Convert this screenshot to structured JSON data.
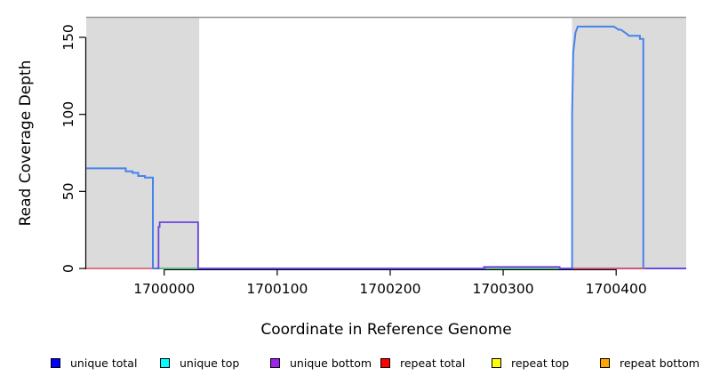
{
  "chart_data": {
    "type": "line",
    "title": "",
    "xlabel": "Coordinate in Reference Genome",
    "ylabel": "Read Coverage Depth",
    "xlim": [
      1699931,
      1700462
    ],
    "ylim": [
      0,
      163
    ],
    "xticks": [
      1700000,
      1700100,
      1700200,
      1700300,
      1700400
    ],
    "yticks": [
      0,
      50,
      100,
      150
    ],
    "grid": false,
    "shade_color": "#DBDBDB",
    "frame_color": "#969696",
    "shaded_regions": [
      {
        "name": "repeat-region-left",
        "from": 1699931,
        "to": 1700031
      },
      {
        "name": "repeat-region-right",
        "from": 1700361,
        "to": 1700462
      }
    ],
    "series": [
      {
        "name": "unique total",
        "color": "#4583EC",
        "width": 2,
        "segments": [
          [
            [
              1699931,
              65
            ],
            [
              1699966,
              65
            ],
            [
              1699966,
              63
            ],
            [
              1699972,
              63
            ],
            [
              1699972,
              62
            ],
            [
              1699977,
              62
            ],
            [
              1699977,
              60
            ],
            [
              1699983,
              60
            ],
            [
              1699983,
              59
            ],
            [
              1699990,
              59
            ],
            [
              1699990,
              0
            ],
            [
              1700361,
              0
            ],
            [
              1700361,
              100
            ],
            [
              1700362,
              140
            ],
            [
              1700364,
              153
            ],
            [
              1700366,
              157
            ],
            [
              1700398,
              157
            ],
            [
              1700400,
              156
            ],
            [
              1700402,
              155
            ],
            [
              1700404,
              155
            ],
            [
              1700406,
              154
            ],
            [
              1700408,
              153
            ],
            [
              1700410,
              152
            ],
            [
              1700411,
              151
            ],
            [
              1700421,
              151
            ],
            [
              1700421,
              149
            ],
            [
              1700424,
              149
            ],
            [
              1700424,
              0
            ],
            [
              1700462,
              0
            ]
          ]
        ]
      },
      {
        "name": "unique top",
        "color": "#6BC96B",
        "width": 1.6,
        "segments": [
          [
            [
              1699993,
              0
            ],
            [
              1700031,
              0
            ]
          ],
          [
            [
              1700285,
              0
            ],
            [
              1700350,
              0
            ]
          ]
        ]
      },
      {
        "name": "unique bottom",
        "color": "#6A45E2",
        "width": 1.8,
        "segments": [
          [
            [
              1699993,
              0
            ],
            [
              1699995,
              0
            ],
            [
              1699995,
              27
            ],
            [
              1699996,
              27
            ],
            [
              1699996,
              30
            ],
            [
              1700030,
              30
            ],
            [
              1700030,
              0
            ],
            [
              1700283,
              0
            ],
            [
              1700283,
              1
            ],
            [
              1700350,
              1
            ],
            [
              1700350,
              0
            ],
            [
              1700462,
              0
            ]
          ]
        ]
      },
      {
        "name": "repeat total",
        "color": "#E25068",
        "width": 1.6,
        "segments": [
          [
            [
              1699931,
              0
            ],
            [
              1699990,
              0
            ]
          ],
          [
            [
              1700362,
              0
            ],
            [
              1700426,
              0
            ]
          ]
        ]
      }
    ],
    "legend": [
      {
        "label": "unique total",
        "color": "#0000FF"
      },
      {
        "label": "unique top",
        "color": "#00FFFF"
      },
      {
        "label": "unique bottom",
        "color": "#A020F0"
      },
      {
        "label": "repeat total",
        "color": "#FF0000"
      },
      {
        "label": "repeat top",
        "color": "#FFFF00"
      },
      {
        "label": "repeat bottom",
        "color": "#FFA500"
      }
    ],
    "legend_position": "bottom"
  }
}
